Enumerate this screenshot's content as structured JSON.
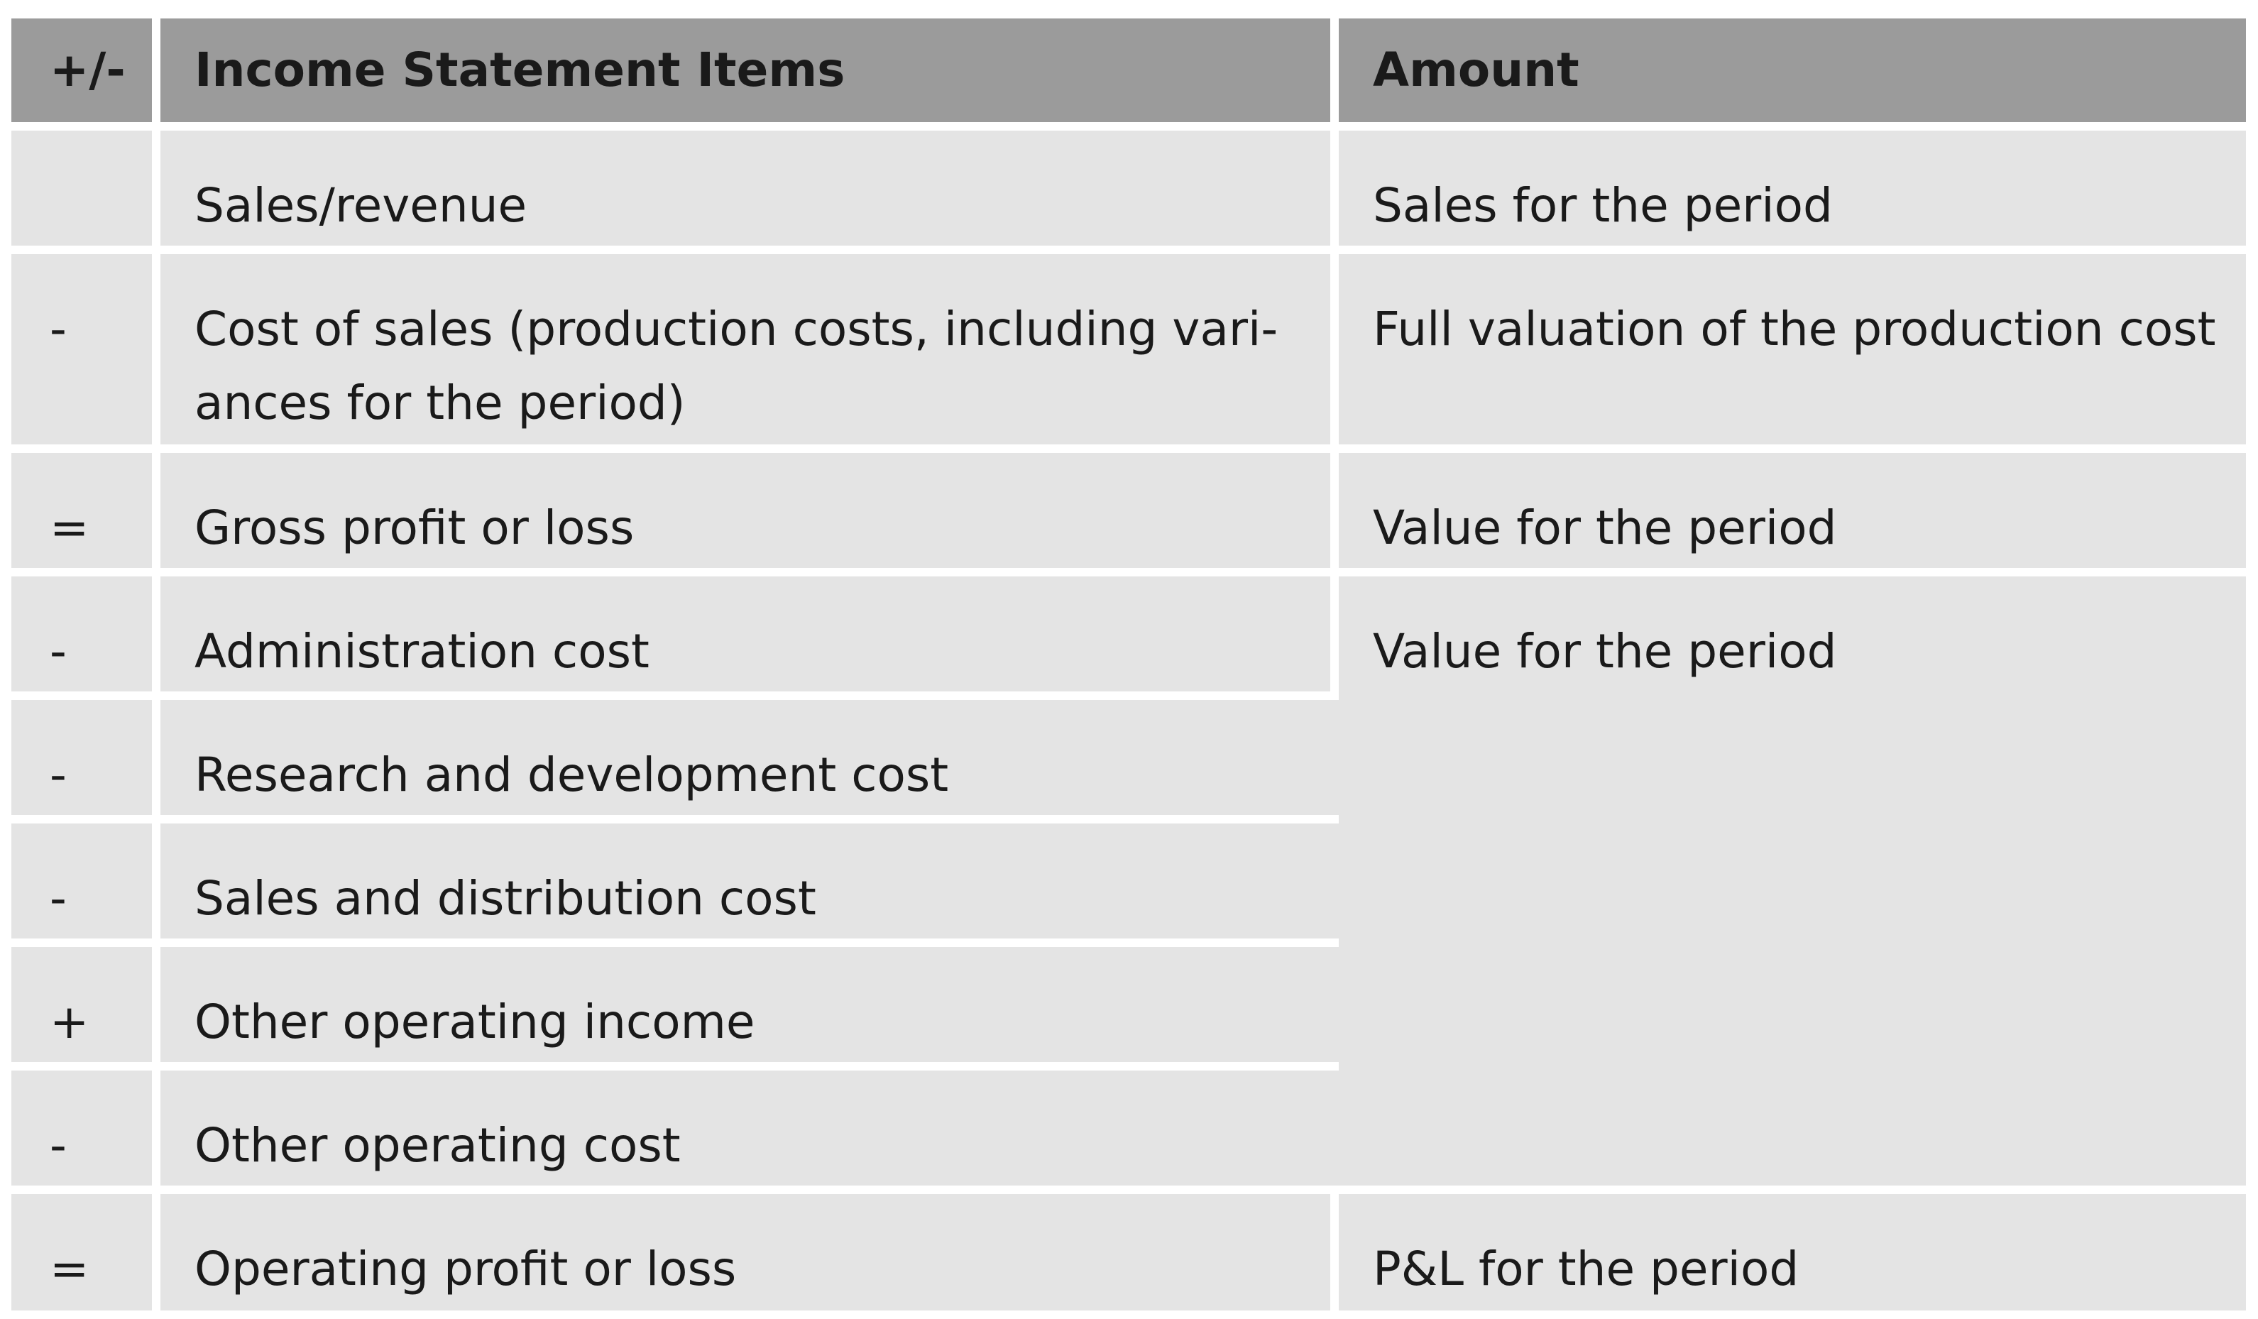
{
  "table": {
    "headers": {
      "sign": "+/-",
      "item": "Income Statement Items",
      "amount": "Amount"
    },
    "rows": [
      {
        "sign": "",
        "item": "Sales/revenue",
        "amount": "Sales for the period"
      },
      {
        "sign": "-",
        "item": "Cost of sales (production costs, including vari-ances for the period)",
        "amount": "Full valuation of the production cost"
      },
      {
        "sign": "=",
        "item": "Gross profit or loss",
        "amount": "Value for the period"
      },
      {
        "sign": "-",
        "item": "Administration cost",
        "amount": "Value for the period"
      },
      {
        "sign": "-",
        "item": "Research and development cost"
      },
      {
        "sign": "-",
        "item": "Sales and distribution cost"
      },
      {
        "sign": "+",
        "item": "Other operating income"
      },
      {
        "sign": "-",
        "item": "Other operating cost"
      },
      {
        "sign": "=",
        "item": "Operating profit or loss",
        "amount": "P&L for the period"
      }
    ]
  },
  "colors": {
    "header_background": "#9b9b9b",
    "cell_background": "#e4e4e4",
    "divider": "#ffffff",
    "text": "#1a1a1a"
  }
}
